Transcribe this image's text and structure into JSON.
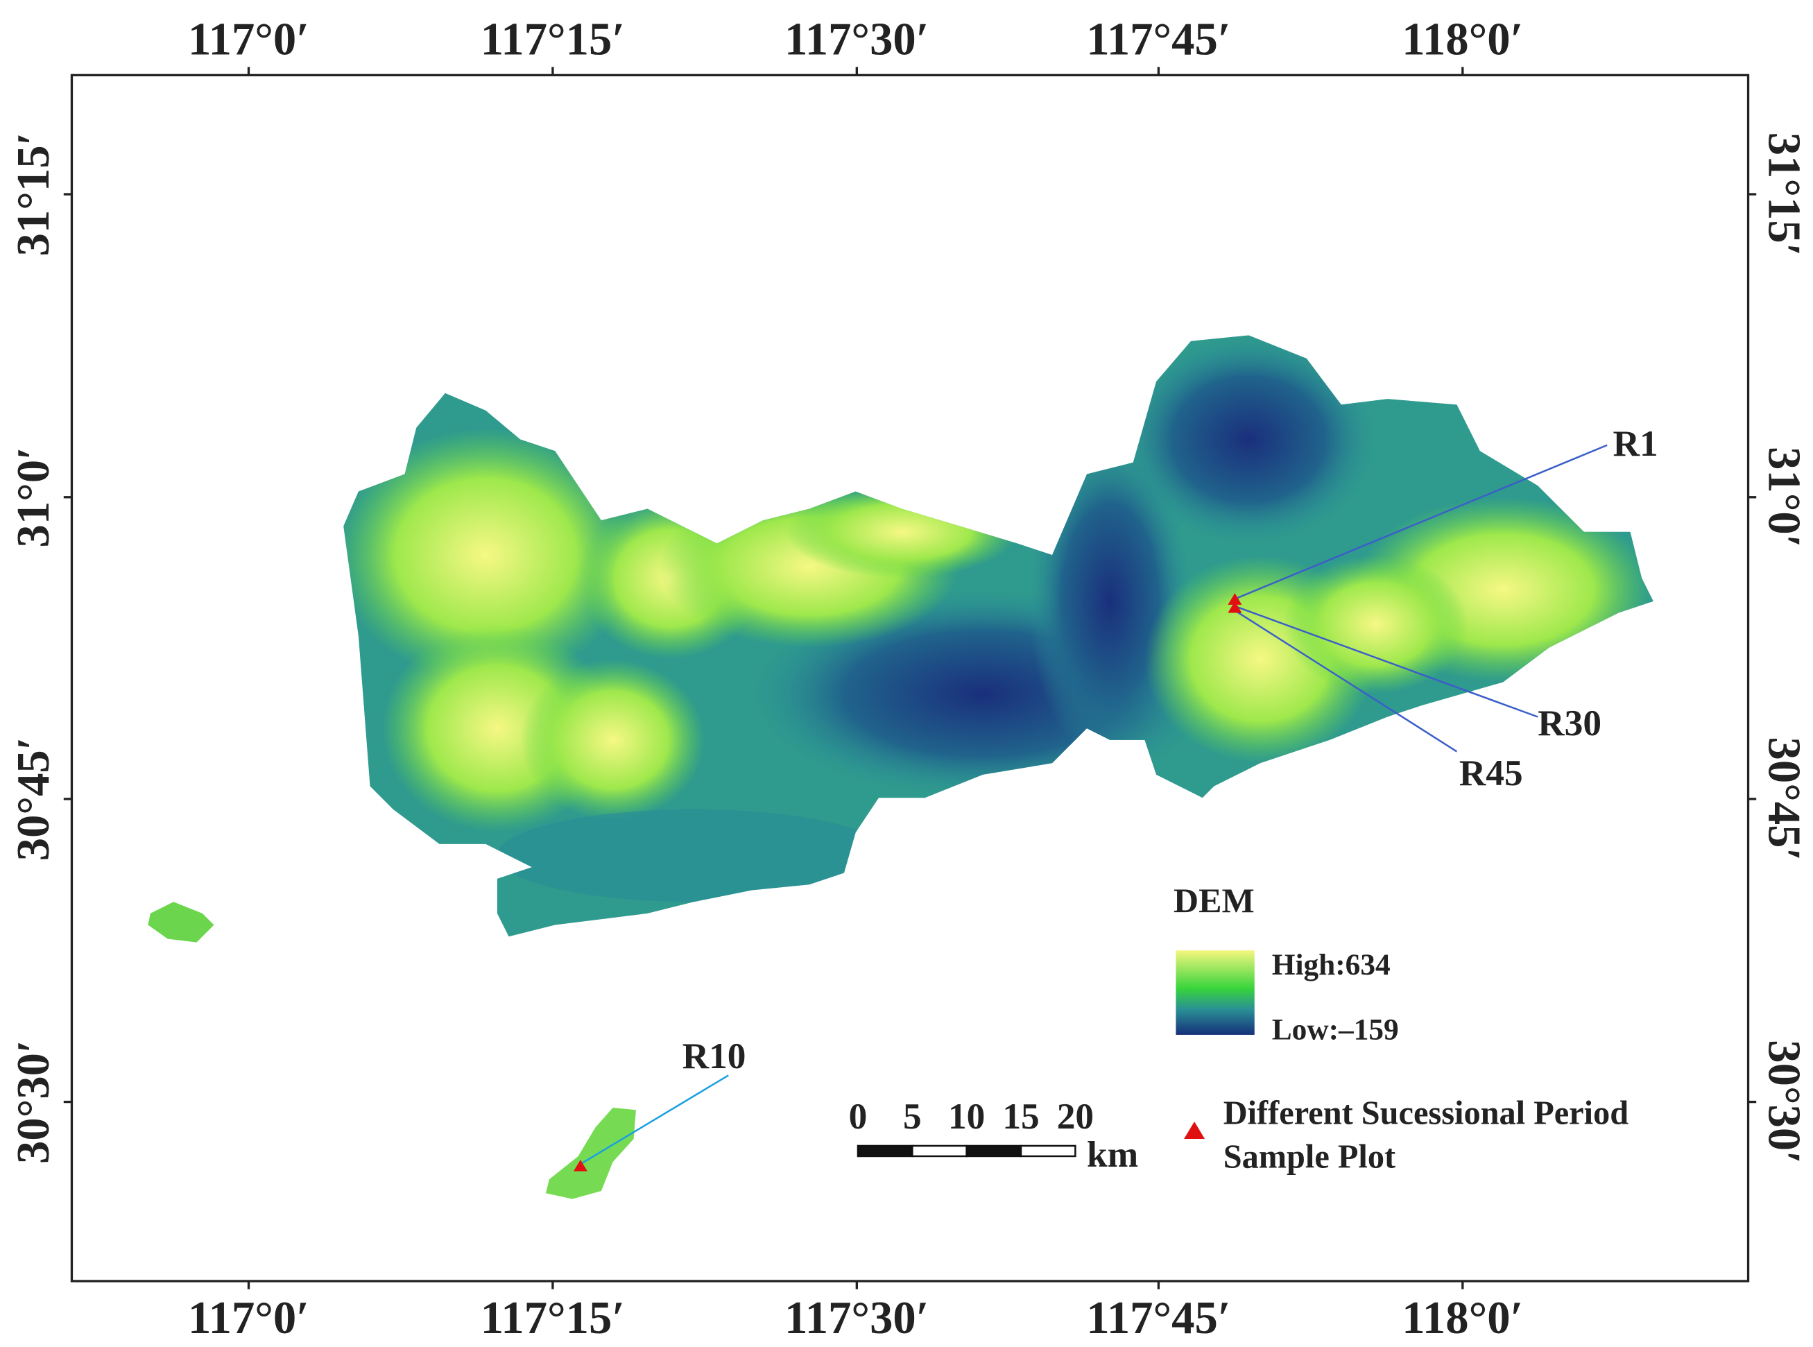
{
  "map": {
    "longitude_labels": [
      "117°0′",
      "117°15′",
      "117°30′",
      "117°45′",
      "118°0′"
    ],
    "latitude_labels": [
      "31°15′",
      "31°0′",
      "30°45′",
      "30°30′"
    ],
    "sample_plots": [
      "R1",
      "R30",
      "R45",
      "R10"
    ],
    "legend": {
      "title": "DEM",
      "high": "High:634",
      "low": "Low:–159",
      "symbol_lines": [
        "Different Sucessional Period",
        "Sample Plot"
      ]
    },
    "scale_bar": {
      "ticks": [
        "0",
        "5",
        "10",
        "15",
        "20"
      ],
      "unit": "km"
    }
  }
}
